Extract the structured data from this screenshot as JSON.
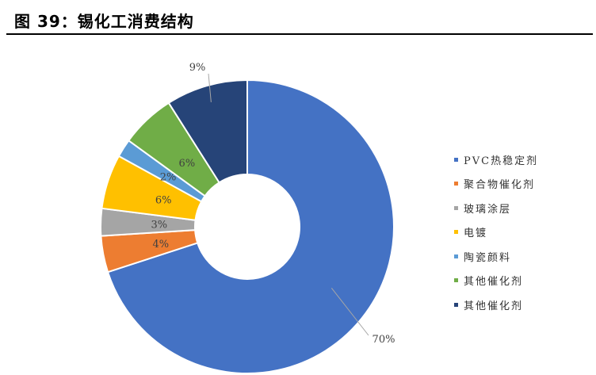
{
  "header": {
    "title": "图 39：锡化工消费结构"
  },
  "chart_data": {
    "type": "pie",
    "style": "donut",
    "start_angle_deg": 0,
    "direction": "clockwise",
    "slices": [
      {
        "label": "PVC热稳定剂",
        "value": 70,
        "display": "70%",
        "color": "#4472C4"
      },
      {
        "label": "聚合物催化剂",
        "value": 4,
        "display": "4%",
        "color": "#ED7D31"
      },
      {
        "label": "玻璃涂层",
        "value": 3,
        "display": "3%",
        "color": "#A5A5A5"
      },
      {
        "label": "电镀",
        "value": 6,
        "display": "6%",
        "color": "#FFC000"
      },
      {
        "label": "陶瓷颜料",
        "value": 2,
        "display": "2%",
        "color": "#5B9BD5"
      },
      {
        "label": "其他催化剂",
        "value": 6,
        "display": "6%",
        "color": "#70AD47"
      },
      {
        "label": "其他催化剂",
        "value": 9,
        "display": "9%",
        "color": "#264478"
      }
    ],
    "legend_position": "right"
  }
}
